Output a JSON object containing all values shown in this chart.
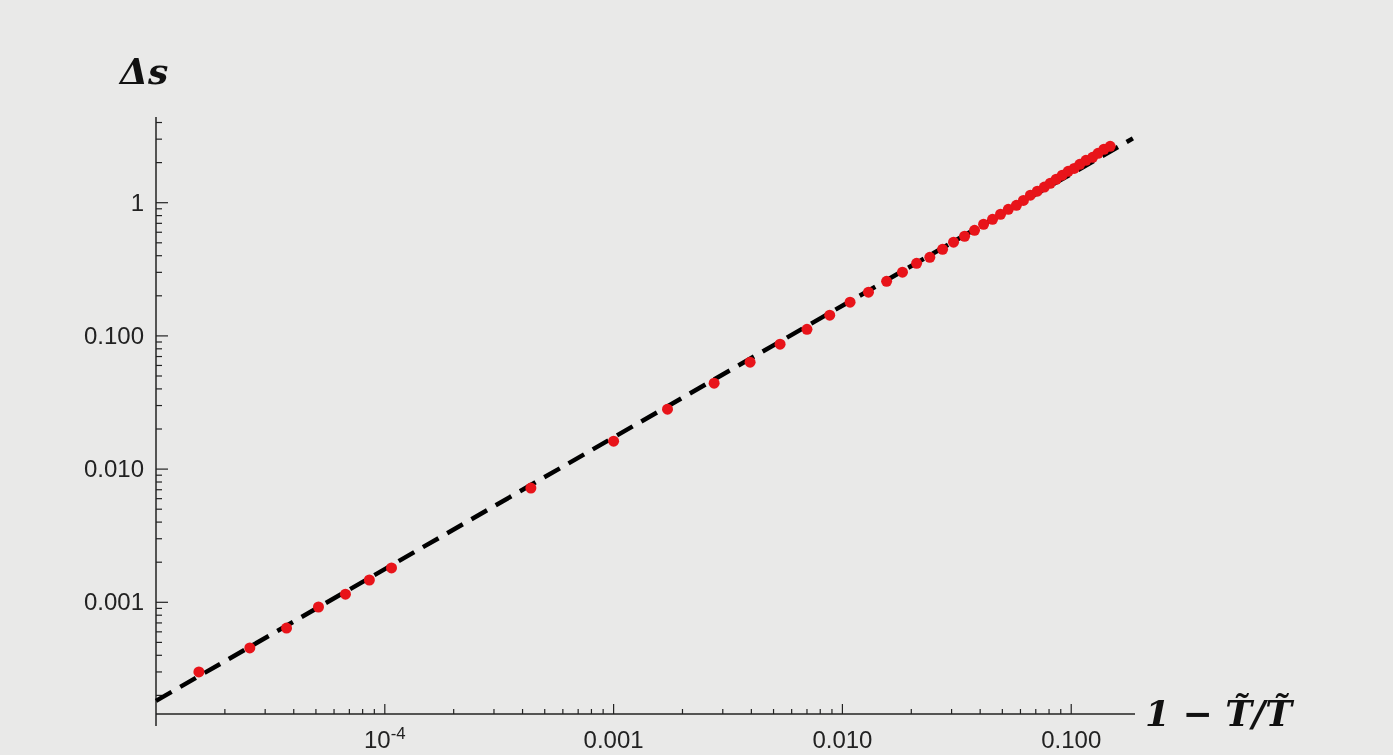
{
  "chart_data": {
    "type": "scatter",
    "xlabel": "1 − T̃/T̃",
    "ylabel": "Δs",
    "log": "xy",
    "grid": false,
    "marker": "circle",
    "xlim": [
      1e-05,
      0.19
    ],
    "ylim": [
      0.000145,
      4.4
    ],
    "xticks": [
      {
        "value": 2e-05,
        "label": null
      },
      {
        "value": 3e-05,
        "label": null
      },
      {
        "value": 4e-05,
        "label": null
      },
      {
        "value": 5e-05,
        "label": null
      },
      {
        "value": 6e-05,
        "label": null
      },
      {
        "value": 7e-05,
        "label": null
      },
      {
        "value": 8e-05,
        "label": null
      },
      {
        "value": 9e-05,
        "label": null
      },
      {
        "value": 0.0001,
        "label": "10$^{-4}$"
      },
      {
        "value": 0.0002,
        "label": null
      },
      {
        "value": 0.0003,
        "label": null
      },
      {
        "value": 0.0004,
        "label": null
      },
      {
        "value": 0.0005,
        "label": null
      },
      {
        "value": 0.0006,
        "label": null
      },
      {
        "value": 0.0007,
        "label": null
      },
      {
        "value": 0.0008,
        "label": null
      },
      {
        "value": 0.0009,
        "label": null
      },
      {
        "value": 0.001,
        "label": "0.001"
      },
      {
        "value": 0.002,
        "label": null
      },
      {
        "value": 0.003,
        "label": null
      },
      {
        "value": 0.004,
        "label": null
      },
      {
        "value": 0.005,
        "label": null
      },
      {
        "value": 0.006,
        "label": null
      },
      {
        "value": 0.007,
        "label": null
      },
      {
        "value": 0.008,
        "label": null
      },
      {
        "value": 0.009,
        "label": null
      },
      {
        "value": 0.01,
        "label": "0.010"
      },
      {
        "value": 0.02,
        "label": null
      },
      {
        "value": 0.03,
        "label": null
      },
      {
        "value": 0.04,
        "label": null
      },
      {
        "value": 0.05,
        "label": null
      },
      {
        "value": 0.06,
        "label": null
      },
      {
        "value": 0.07,
        "label": null
      },
      {
        "value": 0.08,
        "label": null
      },
      {
        "value": 0.09,
        "label": null
      },
      {
        "value": 0.1,
        "label": "0.100"
      }
    ],
    "yticks": [
      {
        "value": 0.0002,
        "label": null
      },
      {
        "value": 0.0003,
        "label": null
      },
      {
        "value": 0.0004,
        "label": null
      },
      {
        "value": 0.0005,
        "label": null
      },
      {
        "value": 0.0006,
        "label": null
      },
      {
        "value": 0.0007,
        "label": null
      },
      {
        "value": 0.0008,
        "label": null
      },
      {
        "value": 0.0009,
        "label": null
      },
      {
        "value": 0.001,
        "label": "0.001"
      },
      {
        "value": 0.002,
        "label": null
      },
      {
        "value": 0.003,
        "label": null
      },
      {
        "value": 0.004,
        "label": null
      },
      {
        "value": 0.005,
        "label": null
      },
      {
        "value": 0.006,
        "label": null
      },
      {
        "value": 0.007,
        "label": null
      },
      {
        "value": 0.008,
        "label": null
      },
      {
        "value": 0.009,
        "label": null
      },
      {
        "value": 0.01,
        "label": "0.010"
      },
      {
        "value": 0.02,
        "label": null
      },
      {
        "value": 0.03,
        "label": null
      },
      {
        "value": 0.04,
        "label": null
      },
      {
        "value": 0.05,
        "label": null
      },
      {
        "value": 0.06,
        "label": null
      },
      {
        "value": 0.07,
        "label": null
      },
      {
        "value": 0.08,
        "label": null
      },
      {
        "value": 0.09,
        "label": null
      },
      {
        "value": 0.1,
        "label": "0.100"
      },
      {
        "value": 0.2,
        "label": null
      },
      {
        "value": 0.3,
        "label": null
      },
      {
        "value": 0.4,
        "label": null
      },
      {
        "value": 0.5,
        "label": null
      },
      {
        "value": 0.6,
        "label": null
      },
      {
        "value": 0.7,
        "label": null
      },
      {
        "value": 0.8,
        "label": null
      },
      {
        "value": 0.9,
        "label": null
      },
      {
        "value": 1,
        "label": "1"
      },
      {
        "value": 2,
        "label": null
      },
      {
        "value": 3,
        "label": null
      },
      {
        "value": 4,
        "label": null
      }
    ],
    "series": [
      {
        "type": "line",
        "color": "#000000",
        "line_style": "dashed",
        "marker": "none",
        "x": [
          1e-05,
          0.186
        ],
        "values": [
          0.000182,
          3.04
        ]
      },
      {
        "color": "#e8141a",
        "x": [
          1.54e-05,
          2.57e-05,
          3.72e-05,
          5.13e-05,
          6.73e-05,
          8.56e-05,
          0.000107,
          0.000435,
          0.001,
          0.00172,
          0.00275,
          0.00395,
          0.00534,
          0.007,
          0.0088,
          0.0108,
          0.013,
          0.0156,
          0.0183,
          0.0211,
          0.0241,
          0.0274,
          0.0306,
          0.0342,
          0.0378,
          0.0414,
          0.0453,
          0.0491,
          0.0531,
          0.0576,
          0.0618,
          0.0663,
          0.0711,
          0.0763,
          0.081,
          0.086,
          0.0914,
          0.097,
          0.103,
          0.109,
          0.116,
          0.124,
          0.131,
          0.139,
          0.148
        ],
        "values": [
          0.0003,
          0.000454,
          0.000641,
          0.000922,
          0.00115,
          0.00147,
          0.00181,
          0.0072,
          0.0162,
          0.0282,
          0.0442,
          0.0635,
          0.0867,
          0.112,
          0.143,
          0.179,
          0.213,
          0.257,
          0.301,
          0.351,
          0.389,
          0.447,
          0.505,
          0.56,
          0.621,
          0.689,
          0.75,
          0.819,
          0.892,
          0.956,
          1.04,
          1.14,
          1.22,
          1.31,
          1.4,
          1.5,
          1.61,
          1.72,
          1.81,
          1.94,
          2.08,
          2.19,
          2.35,
          2.52,
          2.65
        ]
      }
    ]
  }
}
